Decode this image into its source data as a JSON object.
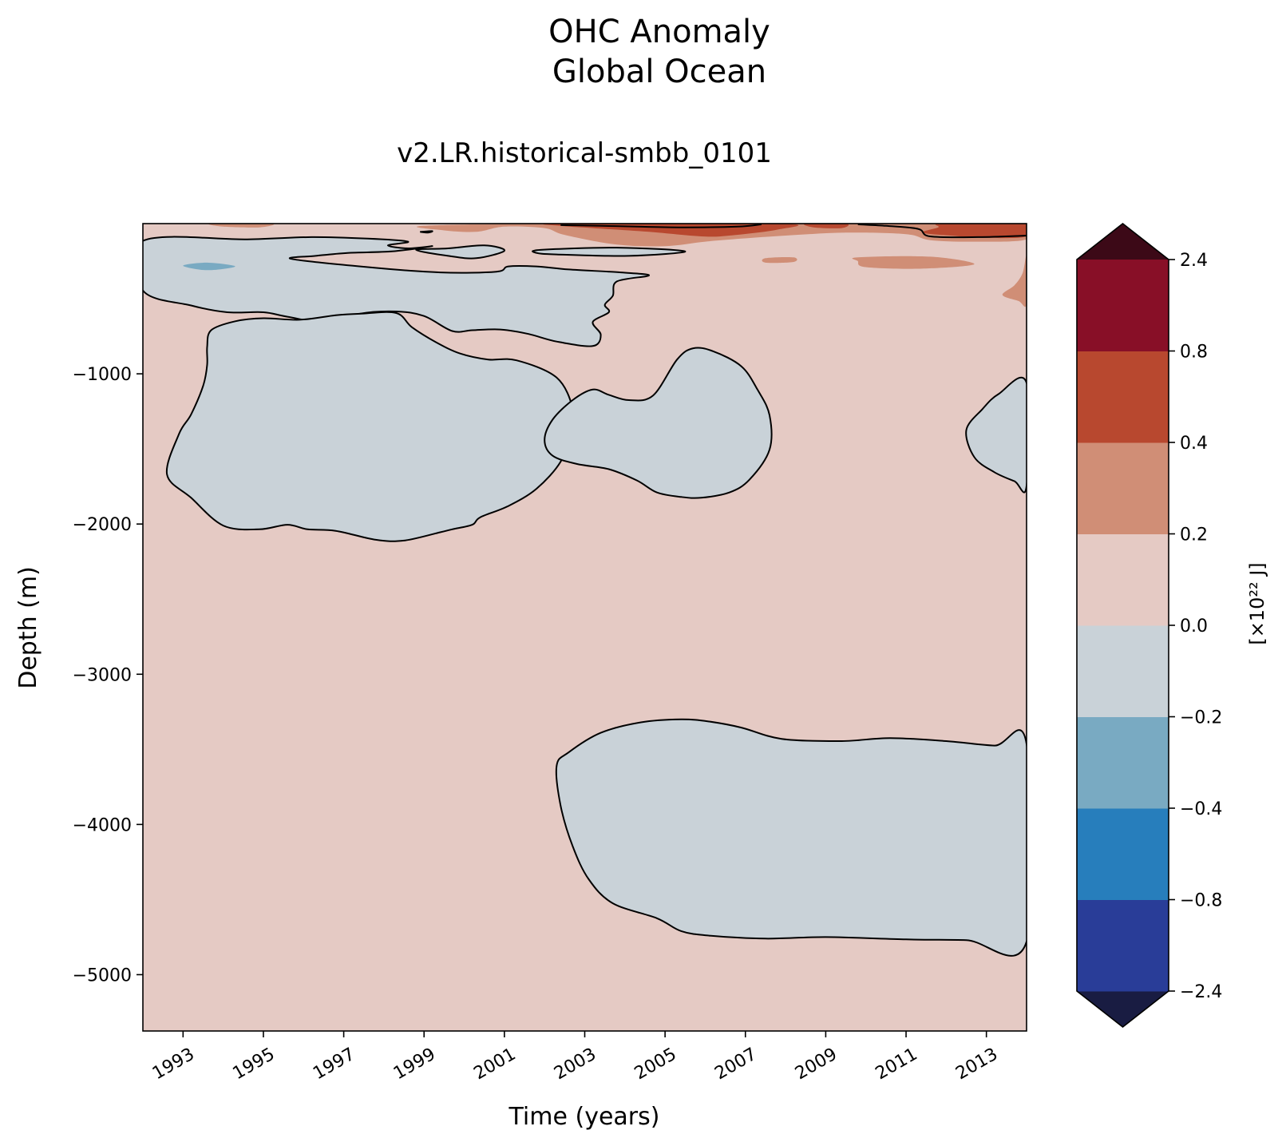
{
  "chart_data": {
    "type": "heatmap",
    "title": "OHC Anomaly",
    "subtitle": "Global Ocean",
    "run_label": "v2.LR.historical-smbb_0101",
    "xlabel": "Time (years)",
    "ylabel": "Depth (m)",
    "xlim": [
      1992.0,
      2014.0
    ],
    "ylim": [
      -5375,
      0
    ],
    "x_ticks": [
      1993,
      1995,
      1997,
      1999,
      2001,
      2003,
      2005,
      2007,
      2009,
      2011,
      2013
    ],
    "x_tick_labels": [
      "1993",
      "1995",
      "1997",
      "1999",
      "2001",
      "2003",
      "2005",
      "2007",
      "2009",
      "2011",
      "2013"
    ],
    "y_ticks": [
      -1000,
      -2000,
      -3000,
      -4000,
      -5000
    ],
    "y_tick_labels": [
      "−1000",
      "−2000",
      "−3000",
      "−4000",
      "−5000"
    ],
    "grid": false,
    "background_level_color": "#e5cac4",
    "contour_line_color": "#000000",
    "colorbar": {
      "label": "[×10²² J]",
      "extend": "both",
      "tick_labels": [
        "2.4",
        "0.8",
        "0.4",
        "0.2",
        "0.0",
        "−0.2",
        "−0.4",
        "−0.8",
        "−2.4"
      ],
      "levels": [
        -2.4,
        -0.8,
        -0.4,
        -0.2,
        0.0,
        0.2,
        0.4,
        0.8,
        2.4
      ],
      "colors": [
        "#293d98",
        "#277ebc",
        "#79aac2",
        "#c9d2d8",
        "#e5cac4",
        "#d08e76",
        "#b8482f",
        "#880f27"
      ],
      "extend_min_color": "#191c42",
      "extend_max_color": "#3c0917"
    },
    "regions": [
      {
        "level": "-0.2 to 0.0",
        "color": "#c9d2d8",
        "outline": true,
        "points": [
          [
            1992.0,
            -115
          ],
          [
            1994.6,
            -105
          ],
          [
            1996.2,
            -90
          ],
          [
            1997.6,
            -100
          ],
          [
            1998.6,
            -120
          ],
          [
            1998.1,
            -145
          ],
          [
            1998.6,
            -165
          ],
          [
            1999.2,
            -150
          ],
          [
            1998.2,
            -185
          ],
          [
            1997.1,
            -195
          ],
          [
            1996.3,
            -215
          ],
          [
            1995.7,
            -235
          ],
          [
            1997.6,
            -290
          ],
          [
            1999.4,
            -325
          ],
          [
            2000.8,
            -320
          ],
          [
            2001.1,
            -285
          ],
          [
            2001.8,
            -285
          ],
          [
            2002.6,
            -305
          ],
          [
            2003.9,
            -325
          ],
          [
            2004.6,
            -345
          ],
          [
            2003.8,
            -385
          ],
          [
            2003.7,
            -480
          ],
          [
            2003.5,
            -540
          ],
          [
            2003.6,
            -590
          ],
          [
            2003.2,
            -655
          ],
          [
            2003.4,
            -740
          ],
          [
            2003.2,
            -815
          ],
          [
            2002.3,
            -785
          ],
          [
            2001.6,
            -735
          ],
          [
            2000.9,
            -705
          ],
          [
            2000.2,
            -710
          ],
          [
            1999.7,
            -715
          ],
          [
            1999.0,
            -615
          ],
          [
            1998.3,
            -585
          ],
          [
            1997.4,
            -600
          ],
          [
            1996.7,
            -665
          ],
          [
            1995.6,
            -620
          ],
          [
            1995.0,
            -590
          ],
          [
            1994.1,
            -590
          ],
          [
            1993.2,
            -545
          ],
          [
            1992.0,
            -445
          ]
        ]
      },
      {
        "level": "-0.2 to 0.0",
        "color": "#c9d2d8",
        "outline": true,
        "points": [
          [
            1993.7,
            -710
          ],
          [
            1994.3,
            -650
          ],
          [
            1995.0,
            -630
          ],
          [
            1995.9,
            -640
          ],
          [
            1996.8,
            -610
          ],
          [
            1997.4,
            -600
          ],
          [
            1998.3,
            -595
          ],
          [
            1998.7,
            -690
          ],
          [
            1999.3,
            -790
          ],
          [
            1999.9,
            -865
          ],
          [
            2000.6,
            -905
          ],
          [
            2001.3,
            -910
          ],
          [
            2002.3,
            -1025
          ],
          [
            2002.7,
            -1235
          ],
          [
            2002.6,
            -1405
          ],
          [
            2002.4,
            -1585
          ],
          [
            2001.8,
            -1765
          ],
          [
            2001.1,
            -1880
          ],
          [
            2000.4,
            -1955
          ],
          [
            2000.2,
            -2005
          ],
          [
            1999.7,
            -2035
          ],
          [
            1999.4,
            -2055
          ],
          [
            1998.5,
            -2110
          ],
          [
            1997.8,
            -2105
          ],
          [
            1996.8,
            -2045
          ],
          [
            1996.1,
            -2035
          ],
          [
            1995.6,
            -2005
          ],
          [
            1994.9,
            -2035
          ],
          [
            1994.0,
            -2010
          ],
          [
            1993.2,
            -1825
          ],
          [
            1992.6,
            -1670
          ],
          [
            1992.9,
            -1400
          ],
          [
            1993.2,
            -1270
          ],
          [
            1993.5,
            -1080
          ],
          [
            1993.6,
            -940
          ],
          [
            1993.6,
            -820
          ]
        ]
      },
      {
        "level": "-0.2 to 0.0",
        "color": "#c9d2d8",
        "outline": true,
        "points": [
          [
            2004.7,
            -1145
          ],
          [
            2005.3,
            -905
          ],
          [
            2005.7,
            -830
          ],
          [
            2006.2,
            -850
          ],
          [
            2006.9,
            -950
          ],
          [
            2007.3,
            -1105
          ],
          [
            2007.6,
            -1275
          ],
          [
            2007.6,
            -1505
          ],
          [
            2007.1,
            -1705
          ],
          [
            2006.6,
            -1790
          ],
          [
            2005.9,
            -1825
          ],
          [
            2005.4,
            -1820
          ],
          [
            2004.8,
            -1790
          ],
          [
            2004.3,
            -1710
          ],
          [
            2003.6,
            -1635
          ],
          [
            2002.8,
            -1600
          ],
          [
            2002.2,
            -1545
          ],
          [
            2002.0,
            -1440
          ],
          [
            2002.2,
            -1305
          ],
          [
            2002.7,
            -1175
          ],
          [
            2003.2,
            -1105
          ],
          [
            2003.6,
            -1140
          ],
          [
            2004.1,
            -1175
          ]
        ]
      },
      {
        "level": "-0.2 to 0.0",
        "color": "#c9d2d8",
        "outline": true,
        "points": [
          [
            2014.0,
            -1060
          ],
          [
            2013.3,
            -1135
          ],
          [
            2012.9,
            -1235
          ],
          [
            2012.5,
            -1375
          ],
          [
            2012.7,
            -1555
          ],
          [
            2013.2,
            -1655
          ],
          [
            2013.7,
            -1715
          ],
          [
            2014.0,
            -1745
          ]
        ]
      },
      {
        "level": "-0.2 to 0.0",
        "color": "#c9d2d8",
        "outline": true,
        "points": [
          [
            2014.0,
            -3465
          ],
          [
            2013.2,
            -3475
          ],
          [
            2012.0,
            -3445
          ],
          [
            2010.6,
            -3425
          ],
          [
            2009.4,
            -3445
          ],
          [
            2007.9,
            -3430
          ],
          [
            2006.9,
            -3355
          ],
          [
            2006.1,
            -3315
          ],
          [
            2005.4,
            -3300
          ],
          [
            2004.4,
            -3320
          ],
          [
            2003.4,
            -3390
          ],
          [
            2002.6,
            -3520
          ],
          [
            2002.3,
            -3610
          ],
          [
            2002.4,
            -3875
          ],
          [
            2002.7,
            -4145
          ],
          [
            2003.1,
            -4365
          ],
          [
            2003.7,
            -4525
          ],
          [
            2004.8,
            -4625
          ],
          [
            2005.4,
            -4710
          ],
          [
            2006.1,
            -4740
          ],
          [
            2007.5,
            -4760
          ],
          [
            2009.0,
            -4750
          ],
          [
            2011.0,
            -4765
          ],
          [
            2012.5,
            -4770
          ],
          [
            2014.0,
            -4780
          ]
        ]
      },
      {
        "level": "-0.2 to 0.0",
        "color": "#c9d2d8",
        "outline": true,
        "points": [
          [
            1999.6,
            -165
          ],
          [
            2000.5,
            -145
          ],
          [
            2001.0,
            -180
          ],
          [
            2000.3,
            -230
          ],
          [
            1999.6,
            -215
          ],
          [
            1998.8,
            -175
          ]
        ]
      },
      {
        "level": "-0.2 to 0.0",
        "color": "#c9d2d8",
        "outline": true,
        "points": [
          [
            2001.9,
            -175
          ],
          [
            2003.8,
            -160
          ],
          [
            2005.5,
            -185
          ],
          [
            2004.1,
            -215
          ],
          [
            2002.3,
            -205
          ],
          [
            2001.8,
            -195
          ]
        ]
      },
      {
        "level": "-0.4 to -0.2",
        "color": "#79aac2",
        "outline": false,
        "points": [
          [
            1993.0,
            -280
          ],
          [
            1993.6,
            -260
          ],
          [
            1994.3,
            -285
          ],
          [
            1993.6,
            -310
          ]
        ]
      },
      {
        "level": "0.2 to 0.4",
        "color": "#d08e76",
        "outline": false,
        "points": [
          [
            2002.8,
            0
          ],
          [
            2014.0,
            0
          ],
          [
            2014.0,
            -105
          ],
          [
            2012.7,
            -120
          ],
          [
            2011.6,
            -110
          ],
          [
            2011.0,
            -70
          ],
          [
            2009.5,
            -60
          ],
          [
            2008.0,
            -80
          ],
          [
            2006.9,
            -100
          ],
          [
            2006.0,
            -120
          ],
          [
            2005.0,
            -150
          ],
          [
            2003.8,
            -140
          ],
          [
            2002.5,
            -75
          ],
          [
            2002.0,
            -30
          ],
          [
            2001.0,
            -20
          ],
          [
            2000.3,
            -55
          ],
          [
            1999.5,
            -45
          ],
          [
            1999.0,
            -15
          ]
        ]
      },
      {
        "level": "0.2 to 0.4",
        "color": "#d08e76",
        "outline": false,
        "points": [
          [
            1993.7,
            0
          ],
          [
            1995.2,
            0
          ],
          [
            1994.9,
            -25
          ],
          [
            1994.0,
            -20
          ]
        ]
      },
      {
        "level": "0.2 to 0.4",
        "color": "#d08e76",
        "outline": false,
        "points": [
          [
            2009.8,
            -225
          ],
          [
            2011.6,
            -220
          ],
          [
            2012.7,
            -270
          ],
          [
            2011.4,
            -300
          ],
          [
            2010.0,
            -290
          ],
          [
            2009.8,
            -250
          ]
        ]
      },
      {
        "level": "0.2 to 0.4",
        "color": "#d08e76",
        "outline": false,
        "points": [
          [
            2014.0,
            -220
          ],
          [
            2013.9,
            -330
          ],
          [
            2013.7,
            -410
          ],
          [
            2013.4,
            -475
          ],
          [
            2013.8,
            -515
          ],
          [
            2014.0,
            -535
          ]
        ]
      },
      {
        "level": "0.2 to 0.4",
        "color": "#d08e76",
        "outline": false,
        "points": [
          [
            2007.5,
            -230
          ],
          [
            2008.2,
            -225
          ],
          [
            2008.2,
            -255
          ],
          [
            2007.5,
            -260
          ]
        ]
      },
      {
        "level": "0.4 to 0.8",
        "color": "#b8482f",
        "outline": false,
        "points": [
          [
            2011.9,
            0
          ],
          [
            2014.0,
            0
          ],
          [
            2014.0,
            -85
          ],
          [
            2013.0,
            -95
          ],
          [
            2012.1,
            -80
          ],
          [
            2011.4,
            -60
          ],
          [
            2011.8,
            -25
          ]
        ]
      },
      {
        "level": "0.4 to 0.8",
        "color": "#b8482f",
        "outline": false,
        "points": [
          [
            2002.4,
            0
          ],
          [
            2007.9,
            0
          ],
          [
            2007.8,
            -40
          ],
          [
            2006.6,
            -80
          ],
          [
            2005.9,
            -85
          ],
          [
            2004.6,
            -55
          ],
          [
            2003.2,
            -30
          ],
          [
            2002.4,
            -15
          ]
        ]
      },
      {
        "level": "0.4 to 0.8",
        "color": "#b8482f",
        "outline": false,
        "points": [
          [
            2008.5,
            0
          ],
          [
            2009.5,
            0
          ],
          [
            2009.4,
            -30
          ],
          [
            2008.7,
            -25
          ]
        ]
      }
    ],
    "contour_lines": [
      [
        [
          2002.4,
          -10
        ],
        [
          2003.4,
          -15
        ],
        [
          2004.3,
          -20
        ],
        [
          2005.5,
          -25
        ],
        [
          2006.8,
          -20
        ],
        [
          2007.4,
          -5
        ]
      ],
      [
        [
          2009.8,
          -5
        ],
        [
          2010.5,
          -15
        ],
        [
          2011.3,
          -35
        ],
        [
          2011.6,
          -85
        ],
        [
          2012.8,
          -90
        ],
        [
          2014.0,
          -80
        ]
      ],
      [
        [
          1998.9,
          -55
        ],
        [
          1999.1,
          -60
        ],
        [
          1999.2,
          -50
        ],
        [
          1998.9,
          -55
        ]
      ]
    ]
  }
}
